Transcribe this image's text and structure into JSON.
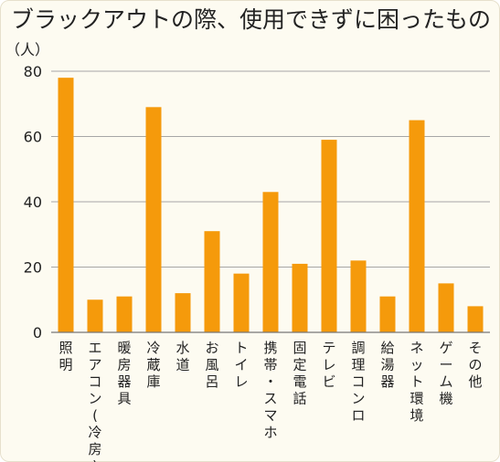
{
  "chart_data": {
    "type": "bar",
    "title": "ブラックアウトの際、使用できずに困ったもの",
    "unit_label": "（人）",
    "categories": [
      "照明",
      "エアコン(冷房)",
      "暖房器具",
      "冷蔵庫",
      "水道",
      "お風呂",
      "トイレ",
      "携帯・スマホ",
      "固定電話",
      "テレビ",
      "調理コンロ",
      "給湯器",
      "ネット環境",
      "ゲーム機",
      "その他"
    ],
    "values": [
      78,
      10,
      11,
      69,
      12,
      31,
      18,
      43,
      21,
      59,
      22,
      11,
      65,
      15,
      8
    ],
    "ylim": [
      0,
      80
    ],
    "yticks": [
      "0",
      "20",
      "40",
      "60",
      "80"
    ],
    "grid": true,
    "colors": {
      "bar": "#f59a0b"
    }
  }
}
